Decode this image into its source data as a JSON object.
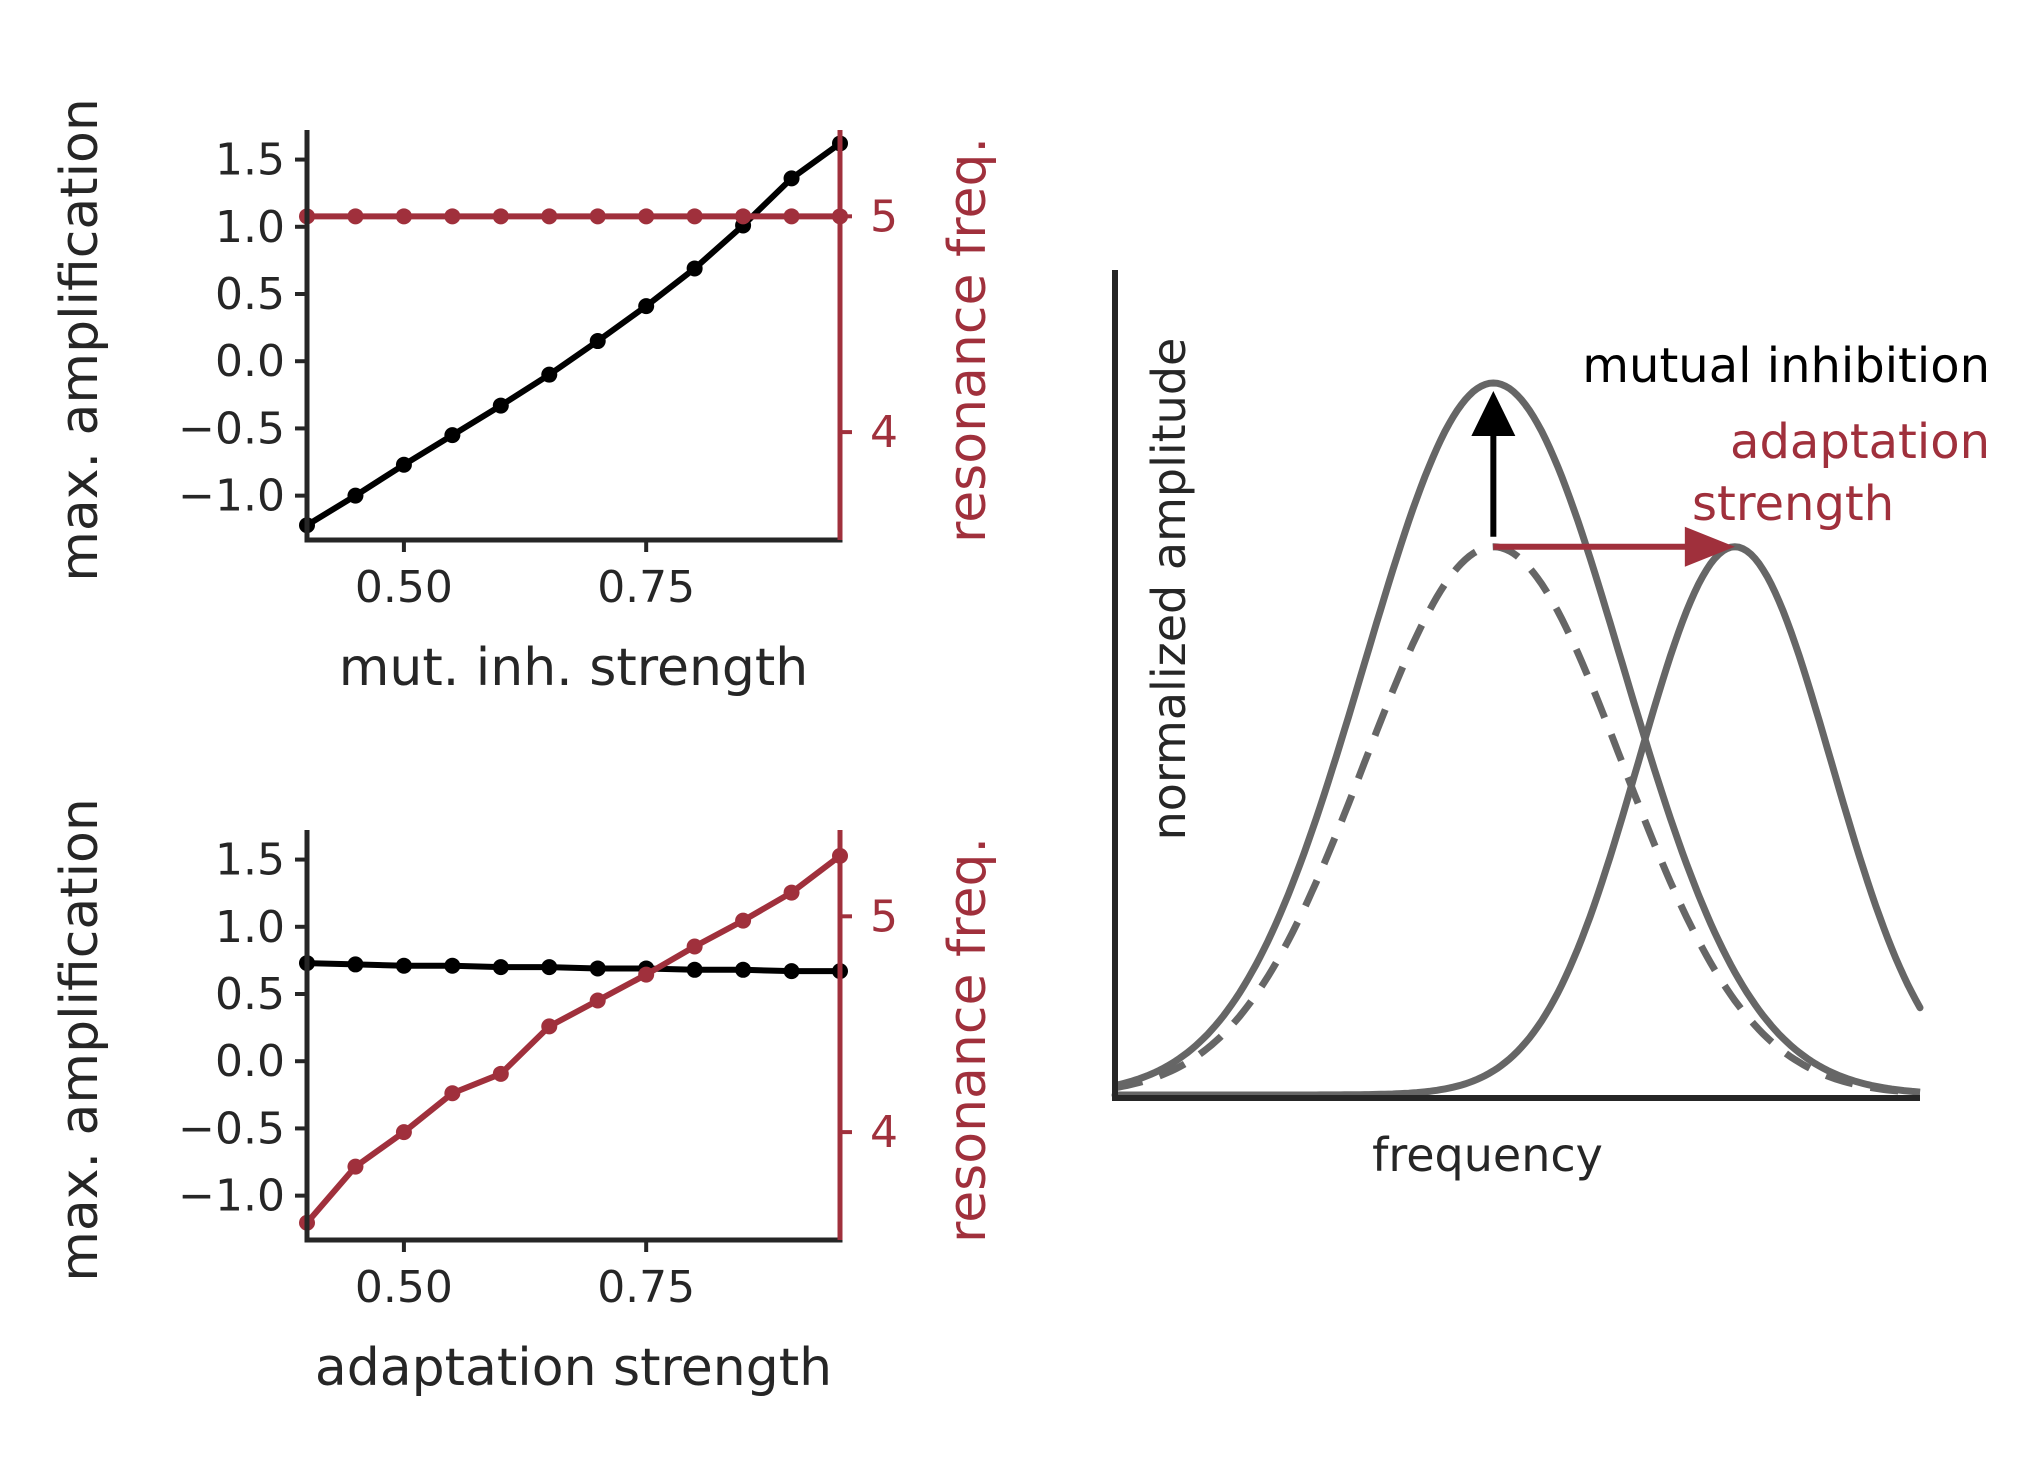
{
  "colors": {
    "black": "#000000",
    "red": "#A0303C",
    "gray": "#666666",
    "axis": "#262626"
  },
  "chart_data": [
    {
      "type": "line",
      "xlabel": "mut. inh. strength",
      "ylabel": "max. amplification",
      "ylabel_right": "resonance freq.",
      "xlim": [
        0.4,
        0.95
      ],
      "ylim": [
        -1.33,
        1.72
      ],
      "ylim_right": [
        3.5,
        5.4
      ],
      "xticks": [
        0.5,
        0.75
      ],
      "xtick_labels": [
        "0.50",
        "0.75"
      ],
      "yticks": [
        1.5,
        1.0,
        0.5,
        0.0,
        -0.5,
        -1.0
      ],
      "ytick_labels": [
        "1.5",
        "1.0",
        "0.5",
        "0.0",
        "−0.5",
        "−1.0"
      ],
      "yticks_right": [
        5,
        4
      ],
      "ytick_labels_right": [
        "5",
        "4"
      ],
      "x": [
        0.4,
        0.45,
        0.5,
        0.55,
        0.6,
        0.65,
        0.7,
        0.75,
        0.8,
        0.85,
        0.9,
        0.95
      ],
      "series": [
        {
          "axis": "left",
          "color": "#000000",
          "values": [
            -1.22,
            -1.0,
            -0.77,
            -0.55,
            -0.33,
            -0.1,
            0.15,
            0.41,
            0.69,
            1.01,
            1.36,
            1.62
          ]
        },
        {
          "axis": "right",
          "color": "#A0303C",
          "values": [
            5.0,
            5.0,
            5.0,
            5.0,
            5.0,
            5.0,
            5.0,
            5.0,
            5.0,
            5.0,
            5.0,
            5.0
          ]
        }
      ]
    },
    {
      "type": "line",
      "xlabel": "adaptation strength",
      "ylabel": "max. amplification",
      "ylabel_right": "resonance freq.",
      "xlim": [
        0.4,
        0.95
      ],
      "ylim": [
        -1.33,
        1.72
      ],
      "ylim_right": [
        3.5,
        5.4
      ],
      "xticks": [
        0.5,
        0.75
      ],
      "xtick_labels": [
        "0.50",
        "0.75"
      ],
      "yticks": [
        1.5,
        1.0,
        0.5,
        0.0,
        -0.5,
        -1.0
      ],
      "ytick_labels": [
        "1.5",
        "1.0",
        "0.5",
        "0.0",
        "−0.5",
        "−1.0"
      ],
      "yticks_right": [
        5,
        4
      ],
      "ytick_labels_right": [
        "5",
        "4"
      ],
      "x": [
        0.4,
        0.45,
        0.5,
        0.55,
        0.6,
        0.65,
        0.7,
        0.75,
        0.8,
        0.85,
        0.9,
        0.95
      ],
      "series": [
        {
          "axis": "left",
          "color": "#000000",
          "values": [
            0.73,
            0.72,
            0.71,
            0.71,
            0.7,
            0.7,
            0.69,
            0.69,
            0.68,
            0.68,
            0.67,
            0.67
          ]
        },
        {
          "axis": "right",
          "color": "#A0303C",
          "values": [
            3.58,
            3.84,
            4.0,
            4.18,
            4.27,
            4.49,
            4.61,
            4.73,
            4.86,
            4.98,
            5.11,
            5.28
          ]
        }
      ]
    },
    {
      "type": "line",
      "xlabel": "frequency",
      "ylabel": "normalized amplitude",
      "annotation_black": "mutual inhibition",
      "annotation_red_line1": "adaptation",
      "annotation_red_line2": "strength",
      "curves": [
        {
          "style": "dashed",
          "color": "#666666",
          "center": 0.47,
          "width": 0.16,
          "peak": 0.77
        },
        {
          "style": "solid",
          "color": "#666666",
          "center": 0.47,
          "width": 0.16,
          "peak": 1.0
        },
        {
          "style": "solid",
          "color": "#666666",
          "center": 0.77,
          "width": 0.12,
          "peak": 0.77
        }
      ]
    }
  ]
}
